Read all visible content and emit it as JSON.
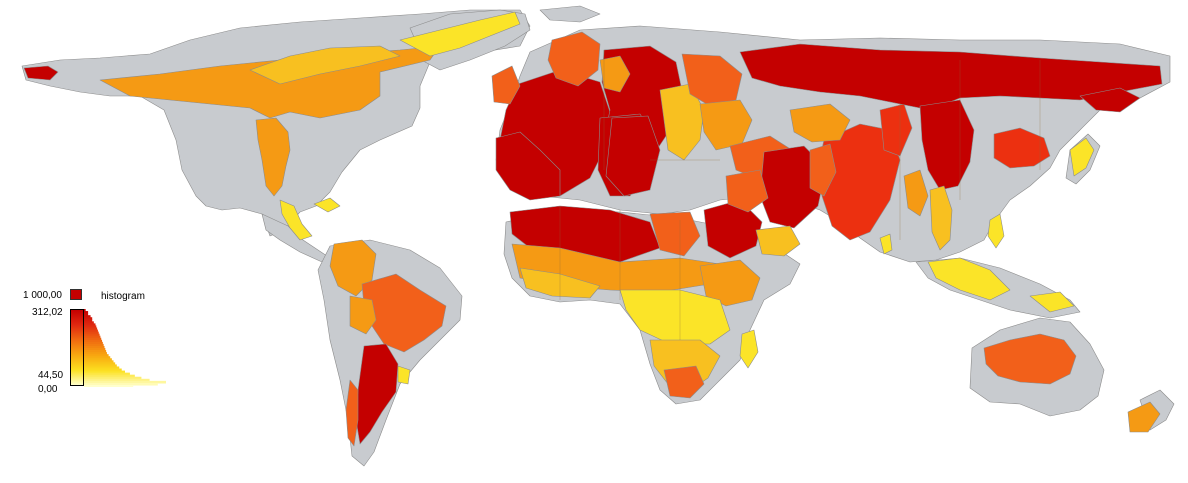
{
  "legend": {
    "title": "histogram",
    "labels": {
      "max": "1 000,00",
      "top": "312,02",
      "mid": "44,50",
      "min": "0,00"
    },
    "max_color": "#c40000",
    "gradient": [
      "#c40000",
      "#e02810",
      "#f06a10",
      "#f8a810",
      "#fce020",
      "#ffffcc"
    ],
    "histogram_shape": [
      0.02,
      0.05,
      0.05,
      0.08,
      0.1,
      0.1,
      0.12,
      0.14,
      0.15,
      0.16,
      0.17,
      0.18,
      0.19,
      0.2,
      0.21,
      0.22,
      0.23,
      0.24,
      0.25,
      0.26,
      0.27,
      0.28,
      0.3,
      0.32,
      0.34,
      0.36,
      0.38,
      0.4,
      0.43,
      0.46,
      0.5,
      0.56,
      0.62,
      0.7,
      0.8,
      1.0,
      0.9,
      0.6
    ]
  },
  "colors": {
    "background": "#ffffff",
    "no_data": "#c8cbcf",
    "outline": "#8c8c8c",
    "class_1": "#c40000",
    "class_2": "#ec3010",
    "class_3": "#f2601a",
    "class_4": "#f59a14",
    "class_5": "#f8c020",
    "class_6": "#fbe428"
  }
}
